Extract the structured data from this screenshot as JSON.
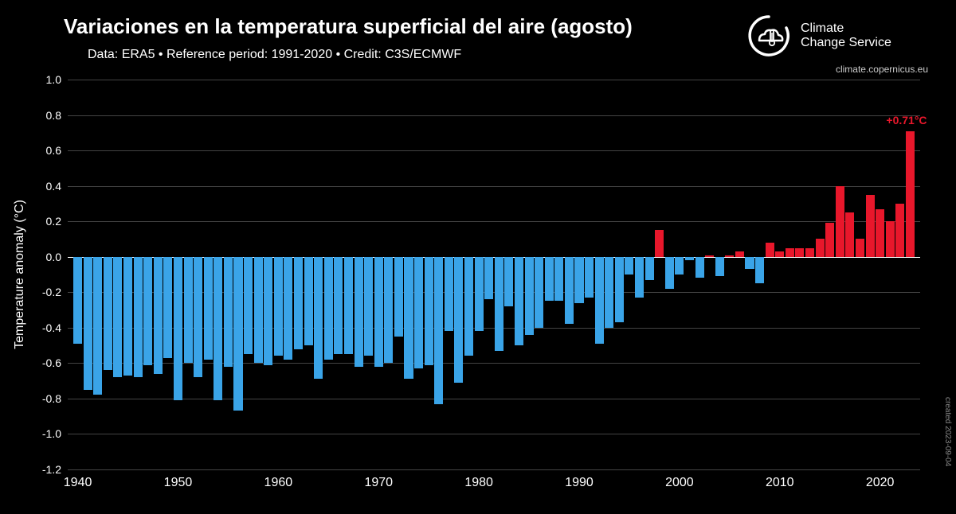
{
  "title": "Variaciones en la temperatura superficial del aire (agosto)",
  "subtitle": "Data: ERA5  •  Reference period: 1991-2020  •  Credit: C3S/ECMWF",
  "logo": {
    "line1": "Climate",
    "line2": "Change Service",
    "url": "climate.copernicus.eu"
  },
  "created_text": "created 2023-09-04",
  "y_axis_label": "Temperature anomaly (°C)",
  "chart": {
    "type": "bar",
    "background_color": "#000000",
    "grid_color": "#444444",
    "zero_line_color": "#ffffff",
    "text_color": "#ffffff",
    "positive_color": "#e8172b",
    "negative_color": "#3aa4e8",
    "font_family": "Arial",
    "title_fontsize": 26,
    "subtitle_fontsize": 16,
    "axis_label_fontsize": 16,
    "tick_fontsize": 14,
    "bar_gap_ratio": 0.12,
    "ylim": [
      -1.2,
      1.0
    ],
    "ytick_step": 0.2,
    "yticks": [
      -1.2,
      -1.0,
      -0.8,
      -0.6,
      -0.4,
      -0.2,
      0.0,
      0.2,
      0.4,
      0.6,
      0.8,
      1.0
    ],
    "xlim": [
      1939,
      2024
    ],
    "xticks": [
      1940,
      1950,
      1960,
      1970,
      1980,
      1990,
      2000,
      2010,
      2020
    ],
    "annotation": {
      "year": 2023,
      "label": "+0.71°C",
      "color": "#e8172b",
      "fontsize": 14
    },
    "years": [
      1940,
      1941,
      1942,
      1943,
      1944,
      1945,
      1946,
      1947,
      1948,
      1949,
      1950,
      1951,
      1952,
      1953,
      1954,
      1955,
      1956,
      1957,
      1958,
      1959,
      1960,
      1961,
      1962,
      1963,
      1964,
      1965,
      1966,
      1967,
      1968,
      1969,
      1970,
      1971,
      1972,
      1973,
      1974,
      1975,
      1976,
      1977,
      1978,
      1979,
      1980,
      1981,
      1982,
      1983,
      1984,
      1985,
      1986,
      1987,
      1988,
      1989,
      1990,
      1991,
      1992,
      1993,
      1994,
      1995,
      1996,
      1997,
      1998,
      1999,
      2000,
      2001,
      2002,
      2003,
      2004,
      2005,
      2006,
      2007,
      2008,
      2009,
      2010,
      2011,
      2012,
      2013,
      2014,
      2015,
      2016,
      2017,
      2018,
      2019,
      2020,
      2021,
      2022,
      2023
    ],
    "values": [
      -0.49,
      -0.75,
      -0.78,
      -0.64,
      -0.68,
      -0.67,
      -0.68,
      -0.61,
      -0.66,
      -0.57,
      -0.81,
      -0.6,
      -0.68,
      -0.58,
      -0.81,
      -0.62,
      -0.87,
      -0.55,
      -0.6,
      -0.61,
      -0.56,
      -0.58,
      -0.52,
      -0.5,
      -0.69,
      -0.58,
      -0.55,
      -0.55,
      -0.62,
      -0.56,
      -0.62,
      -0.6,
      -0.45,
      -0.69,
      -0.63,
      -0.61,
      -0.83,
      -0.42,
      -0.71,
      -0.56,
      -0.42,
      -0.24,
      -0.53,
      -0.28,
      -0.5,
      -0.44,
      -0.4,
      -0.25,
      -0.25,
      -0.38,
      -0.26,
      -0.23,
      -0.49,
      -0.4,
      -0.37,
      -0.1,
      -0.23,
      -0.13,
      0.15,
      -0.18,
      -0.1,
      -0.02,
      -0.12,
      0.01,
      -0.11,
      0.01,
      0.03,
      -0.07,
      -0.15,
      0.08,
      0.03,
      0.05,
      0.05,
      0.05,
      0.1,
      0.19,
      0.4,
      0.25,
      0.1,
      0.35,
      0.27,
      0.2,
      0.3,
      0.71
    ]
  }
}
